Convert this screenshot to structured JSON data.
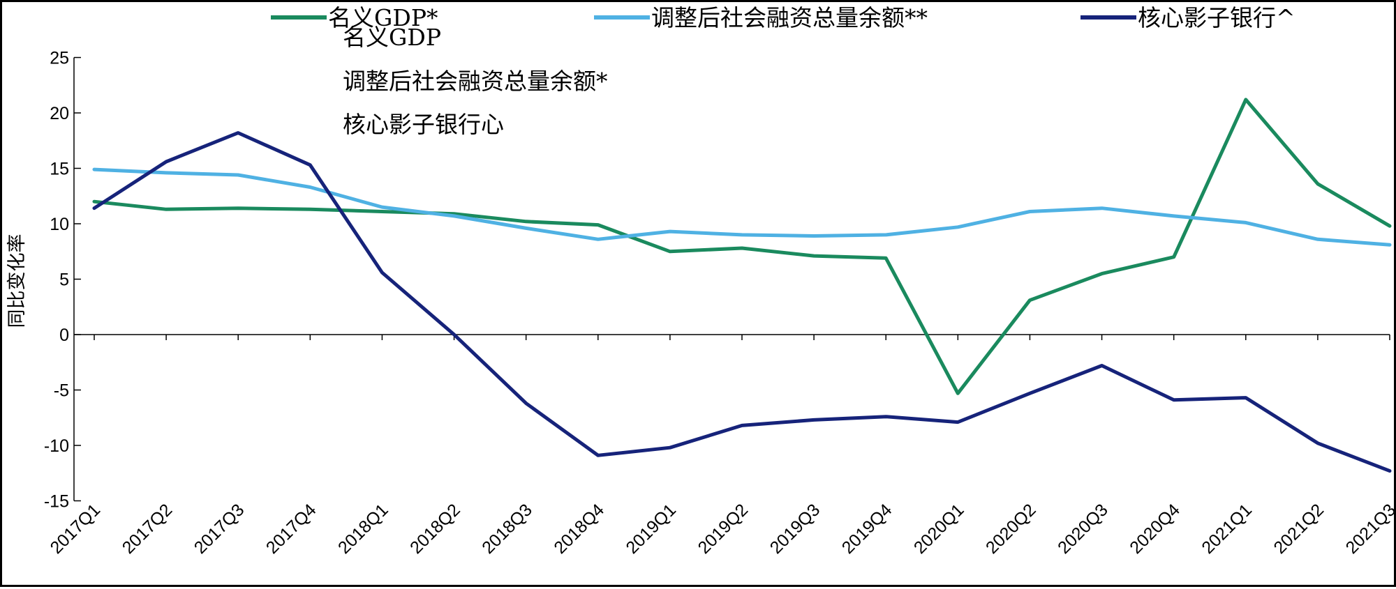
{
  "chart_data": {
    "type": "line",
    "categories": [
      "2017Q1",
      "2017Q2",
      "2017Q3",
      "2017Q4",
      "2018Q1",
      "2018Q2",
      "2018Q3",
      "2018Q4",
      "2019Q1",
      "2019Q2",
      "2019Q3",
      "2019Q4",
      "2020Q1",
      "2020Q2",
      "2020Q3",
      "2020Q4",
      "2021Q1",
      "2021Q2",
      "2021Q3"
    ],
    "series": [
      {
        "name": "名义GDP*",
        "color": "#1a8a5e",
        "values": [
          12.0,
          11.3,
          11.4,
          11.3,
          11.1,
          10.9,
          10.2,
          9.9,
          7.5,
          7.8,
          7.1,
          6.9,
          -5.3,
          3.1,
          5.5,
          7.0,
          21.2,
          13.6,
          9.8
        ]
      },
      {
        "name": "调整后社会融资总量余额**",
        "color": "#4fb1e3",
        "values": [
          14.9,
          14.6,
          14.4,
          13.3,
          11.5,
          10.7,
          9.6,
          8.6,
          9.3,
          9.0,
          8.9,
          9.0,
          9.7,
          11.1,
          11.4,
          10.7,
          10.1,
          8.6,
          8.1
        ]
      },
      {
        "name": "核心影子银行^",
        "color": "#16237a",
        "values": [
          11.4,
          15.6,
          18.2,
          15.3,
          5.6,
          0.0,
          -6.2,
          -10.9,
          -10.2,
          -8.2,
          -7.7,
          -7.4,
          -7.9,
          -5.3,
          -2.8,
          -5.9,
          -5.7,
          -9.8,
          -12.3
        ]
      }
    ],
    "ylabel": "同比变化率",
    "xlabel": "",
    "title": "",
    "ylim": [
      -15,
      25
    ],
    "yticks": [
      25,
      20,
      15,
      10,
      5,
      0,
      -5,
      -10,
      -15
    ],
    "grid": false,
    "legend_position": "top"
  },
  "overlay_text": [
    "名义GDP",
    "调整后社会融资总量余额*",
    "核心影子银行心"
  ]
}
